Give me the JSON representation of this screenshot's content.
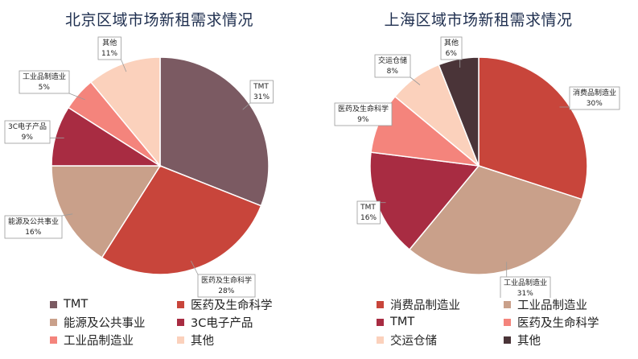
{
  "chart_data": [
    {
      "type": "pie",
      "title": "北京区域市场新租需求情况",
      "slices": [
        {
          "label": "TMT",
          "value": 31,
          "display": "31%",
          "color": "#7b5a62"
        },
        {
          "label": "医药及生命科学",
          "value": 28,
          "display": "28%",
          "color": "#c8453b"
        },
        {
          "label": "能源及公共事业",
          "value": 16,
          "display": "16%",
          "color": "#c9a08a"
        },
        {
          "label": "3C电子产品",
          "value": 9,
          "display": "9%",
          "color": "#a82c42"
        },
        {
          "label": "工业品制造业",
          "value": 5,
          "display": "5%",
          "color": "#f4847c"
        },
        {
          "label": "其他",
          "value": 11,
          "display": "11%",
          "color": "#fbd1bc"
        }
      ],
      "legend_position": "bottom"
    },
    {
      "type": "pie",
      "title": "上海区域市场新租需求情况",
      "slices": [
        {
          "label": "消费品制造业",
          "value": 30,
          "display": "30%",
          "color": "#c8453b"
        },
        {
          "label": "工业品制造业",
          "value": 31,
          "display": "31%",
          "color": "#c9a08a"
        },
        {
          "label": "TMT",
          "value": 16,
          "display": "16%",
          "color": "#a82c42"
        },
        {
          "label": "医药及生命科学",
          "value": 9,
          "display": "9%",
          "color": "#f4847c"
        },
        {
          "label": "交运仓储",
          "value": 8,
          "display": "8%",
          "color": "#fbd1bc"
        },
        {
          "label": "其他",
          "value": 6,
          "display": "6%",
          "color": "#4a3438"
        }
      ],
      "legend_position": "bottom"
    }
  ]
}
